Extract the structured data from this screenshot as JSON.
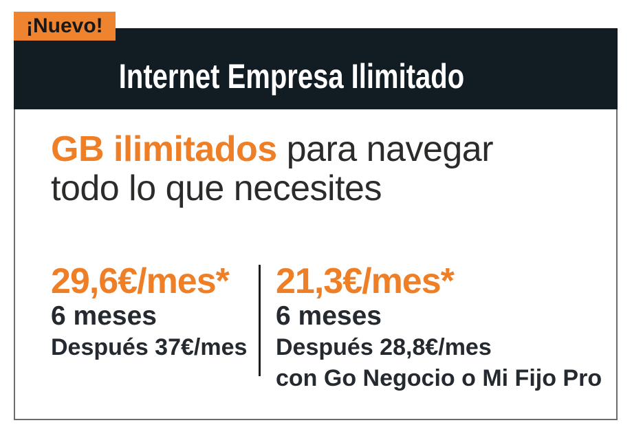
{
  "badge": {
    "label": "¡Nuevo!"
  },
  "header": {
    "title": "Internet Empresa Ilimitado"
  },
  "headline": {
    "highlight": "GB ilimitados",
    "rest": " para navegar todo lo que necesites"
  },
  "offers": [
    {
      "price": "29,6€/mes*",
      "duration": "6 meses",
      "after_price": "Después 37€/mes",
      "condition": ""
    },
    {
      "price": "21,3€/mes*",
      "duration": "6 meses",
      "after_price": "Después 28,8€/mes",
      "condition": "con Go Negocio o Mi Fijo Pro"
    }
  ],
  "colors": {
    "accent": "#EE7F26",
    "badge_bg": "#EF8430",
    "header_bg": "#111C23",
    "dark_text": "#242A2F",
    "border": "#6B6B6B",
    "divider": "#1D1D1D"
  }
}
